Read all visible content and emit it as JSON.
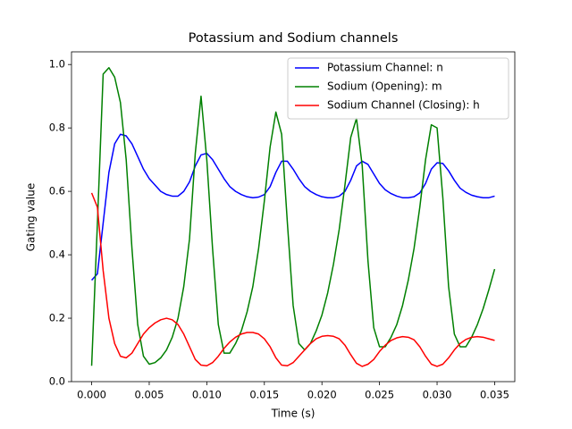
{
  "chart_data": {
    "type": "line",
    "title": "Potassium and Sodium channels",
    "xlabel": "Time (s)",
    "ylabel": "Gating value",
    "x": [
      0,
      0.0005,
      0.001,
      0.0015,
      0.002,
      0.0025,
      0.003,
      0.0035,
      0.004,
      0.0045,
      0.005,
      0.0055,
      0.006,
      0.0065,
      0.007,
      0.0075,
      0.008,
      0.0085,
      0.009,
      0.0095,
      0.01,
      0.0105,
      0.011,
      0.0115,
      0.012,
      0.0125,
      0.013,
      0.0135,
      0.014,
      0.0145,
      0.015,
      0.0155,
      0.016,
      0.0165,
      0.017,
      0.0175,
      0.018,
      0.0185,
      0.019,
      0.0195,
      0.02,
      0.0205,
      0.021,
      0.0215,
      0.022,
      0.0225,
      0.023,
      0.0235,
      0.024,
      0.0245,
      0.025,
      0.0255,
      0.026,
      0.0265,
      0.027,
      0.0275,
      0.028,
      0.0285,
      0.029,
      0.0295,
      0.03,
      0.0305,
      0.031,
      0.0315,
      0.032,
      0.0325,
      0.033,
      0.0335,
      0.034,
      0.0345,
      0.035
    ],
    "series": [
      {
        "name": "Potassium Channel: n",
        "color": "#0000ff",
        "values": [
          0.32,
          0.34,
          0.5,
          0.66,
          0.75,
          0.78,
          0.775,
          0.75,
          0.71,
          0.67,
          0.64,
          0.62,
          0.6,
          0.59,
          0.585,
          0.585,
          0.6,
          0.63,
          0.68,
          0.715,
          0.72,
          0.7,
          0.67,
          0.64,
          0.615,
          0.6,
          0.59,
          0.583,
          0.58,
          0.582,
          0.59,
          0.615,
          0.66,
          0.695,
          0.695,
          0.67,
          0.64,
          0.615,
          0.6,
          0.59,
          0.583,
          0.58,
          0.58,
          0.585,
          0.6,
          0.635,
          0.68,
          0.695,
          0.685,
          0.655,
          0.625,
          0.605,
          0.593,
          0.585,
          0.58,
          0.58,
          0.583,
          0.595,
          0.625,
          0.67,
          0.69,
          0.688,
          0.665,
          0.635,
          0.61,
          0.597,
          0.588,
          0.583,
          0.58,
          0.58,
          0.585
        ]
      },
      {
        "name": "Sodium (Opening): m",
        "color": "#008000",
        "values": [
          0.05,
          0.5,
          0.97,
          0.99,
          0.96,
          0.88,
          0.7,
          0.42,
          0.18,
          0.08,
          0.055,
          0.06,
          0.075,
          0.1,
          0.14,
          0.2,
          0.3,
          0.45,
          0.72,
          0.9,
          0.7,
          0.42,
          0.18,
          0.09,
          0.09,
          0.12,
          0.16,
          0.22,
          0.3,
          0.42,
          0.57,
          0.74,
          0.85,
          0.78,
          0.5,
          0.24,
          0.12,
          0.1,
          0.12,
          0.16,
          0.21,
          0.28,
          0.37,
          0.48,
          0.62,
          0.77,
          0.83,
          0.68,
          0.38,
          0.17,
          0.11,
          0.11,
          0.14,
          0.18,
          0.24,
          0.32,
          0.42,
          0.55,
          0.7,
          0.81,
          0.8,
          0.58,
          0.3,
          0.15,
          0.11,
          0.11,
          0.14,
          0.18,
          0.23,
          0.29,
          0.355
        ]
      },
      {
        "name": "Sodium Channel (Closing): h",
        "color": "#ff0000",
        "values": [
          0.595,
          0.55,
          0.35,
          0.2,
          0.12,
          0.08,
          0.075,
          0.09,
          0.12,
          0.15,
          0.17,
          0.185,
          0.195,
          0.2,
          0.195,
          0.18,
          0.15,
          0.11,
          0.07,
          0.052,
          0.05,
          0.06,
          0.08,
          0.105,
          0.125,
          0.14,
          0.15,
          0.155,
          0.155,
          0.15,
          0.135,
          0.11,
          0.075,
          0.052,
          0.05,
          0.06,
          0.08,
          0.1,
          0.12,
          0.135,
          0.143,
          0.145,
          0.143,
          0.135,
          0.115,
          0.085,
          0.058,
          0.048,
          0.055,
          0.07,
          0.095,
          0.115,
          0.13,
          0.138,
          0.142,
          0.14,
          0.132,
          0.11,
          0.08,
          0.055,
          0.048,
          0.055,
          0.075,
          0.1,
          0.12,
          0.133,
          0.14,
          0.142,
          0.14,
          0.135,
          0.13
        ]
      }
    ],
    "xlim": [
      -0.00175,
      0.03675
    ],
    "ylim": [
      0,
      1.04
    ],
    "xticks": [
      {
        "value": 0,
        "label": "0.000"
      },
      {
        "value": 0.005,
        "label": "0.005"
      },
      {
        "value": 0.01,
        "label": "0.010"
      },
      {
        "value": 0.015,
        "label": "0.015"
      },
      {
        "value": 0.02,
        "label": "0.020"
      },
      {
        "value": 0.025,
        "label": "0.025"
      },
      {
        "value": 0.03,
        "label": "0.030"
      },
      {
        "value": 0.035,
        "label": "0.035"
      }
    ],
    "yticks": [
      {
        "value": 0,
        "label": "0.0"
      },
      {
        "value": 0.2,
        "label": "0.2"
      },
      {
        "value": 0.4,
        "label": "0.4"
      },
      {
        "value": 0.6,
        "label": "0.6"
      },
      {
        "value": 0.8,
        "label": "0.8"
      },
      {
        "value": 1,
        "label": "1.0"
      }
    ],
    "grid": false,
    "legend": "upper right"
  }
}
